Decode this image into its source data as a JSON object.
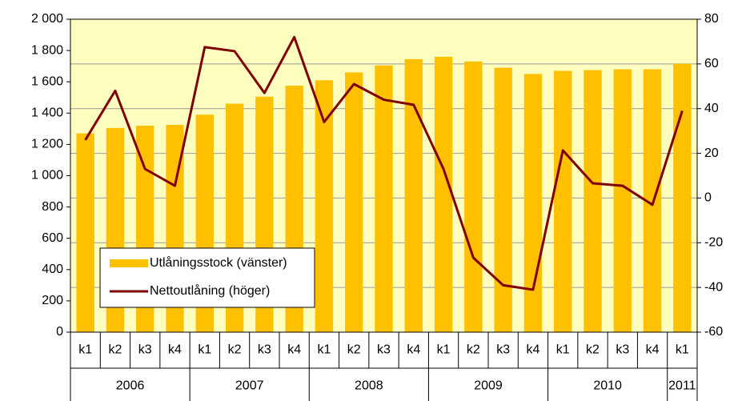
{
  "chart_data": {
    "type": "bar-line",
    "groups": [
      {
        "name": "2006",
        "categories": [
          "k1",
          "k2",
          "k3",
          "k4"
        ]
      },
      {
        "name": "2007",
        "categories": [
          "k1",
          "k2",
          "k3",
          "k4"
        ]
      },
      {
        "name": "2008",
        "categories": [
          "k1",
          "k2",
          "k3",
          "k4"
        ]
      },
      {
        "name": "2009",
        "categories": [
          "k1",
          "k2",
          "k3",
          "k4"
        ]
      },
      {
        "name": "2010",
        "categories": [
          "k1",
          "k2",
          "k3",
          "k4"
        ]
      },
      {
        "name": "2011",
        "categories": [
          "k1"
        ]
      }
    ],
    "series": [
      {
        "name": "Utlåningsstock (vänster)",
        "type": "bar",
        "color": "#ffc000",
        "axis": "y",
        "values": [
          1270,
          1305,
          1320,
          1325,
          1390,
          1460,
          1505,
          1575,
          1610,
          1660,
          1705,
          1745,
          1760,
          1730,
          1690,
          1650,
          1670,
          1675,
          1680,
          1680,
          1715
        ]
      },
      {
        "name": "Nettoutlåning (höger)",
        "type": "line",
        "color": "#800000",
        "axis": "y2",
        "values": [
          26,
          48,
          13,
          5.5,
          67.5,
          65.7,
          47,
          72,
          34,
          51,
          44,
          41.7,
          13,
          -26.7,
          -39,
          -41,
          21.3,
          6.6,
          5.5,
          -3,
          39
        ]
      }
    ],
    "ylim": [
      0,
      2000
    ],
    "yticks": [
      0,
      200,
      400,
      600,
      800,
      {
        "value": 1000,
        "label": "1 000"
      },
      {
        "value": 1200,
        "label": "1 200"
      },
      {
        "value": 1400,
        "label": "1 400"
      },
      {
        "value": 1600,
        "label": "1 600"
      },
      {
        "value": 1800,
        "label": "1 800"
      },
      {
        "value": 2000,
        "label": "2 000"
      }
    ],
    "y2lim": [
      -60,
      80
    ],
    "y2ticks": [
      -60,
      -40,
      -20,
      0,
      20,
      40,
      60,
      80
    ],
    "grid": true,
    "legend": "lower left",
    "plot_background": "#ffffc0"
  }
}
